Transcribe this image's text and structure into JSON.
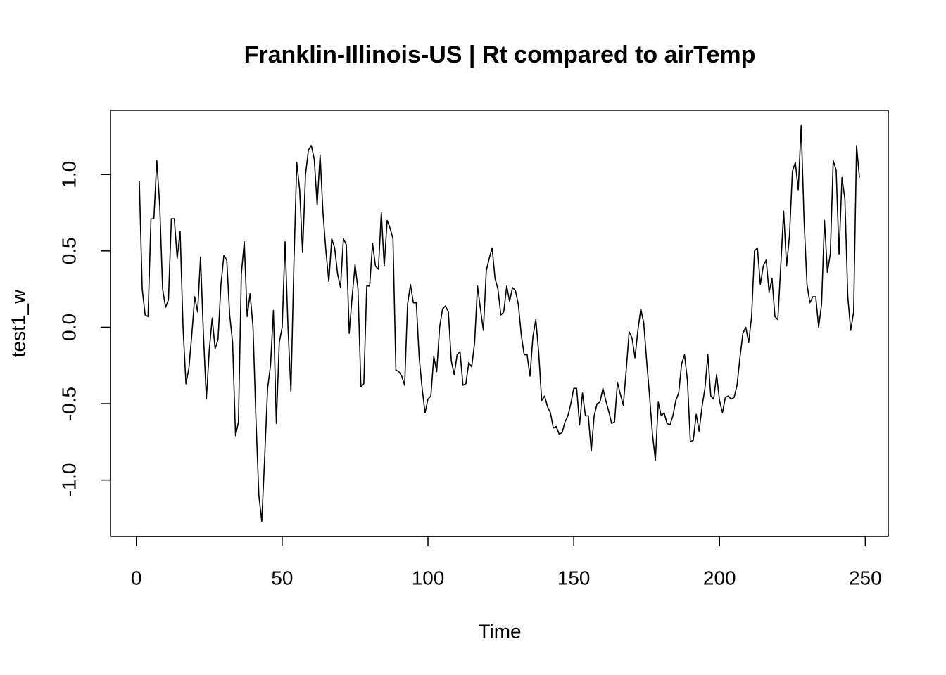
{
  "chart_data": {
    "type": "line",
    "title": "Franklin-Illinois-US | Rt compared to airTemp",
    "x_label": "Time",
    "y_label": "test1_w",
    "x": [
      1,
      2,
      3,
      4,
      5,
      6,
      7,
      8,
      9,
      10,
      11,
      12,
      13,
      14,
      15,
      16,
      17,
      18,
      19,
      20,
      21,
      22,
      23,
      24,
      25,
      26,
      27,
      28,
      29,
      30,
      31,
      32,
      33,
      34,
      35,
      36,
      37,
      38,
      39,
      40,
      41,
      42,
      43,
      44,
      45,
      46,
      47,
      48,
      49,
      50,
      51,
      52,
      53,
      54,
      55,
      56,
      57,
      58,
      59,
      60,
      61,
      62,
      63,
      64,
      65,
      66,
      67,
      68,
      69,
      70,
      71,
      72,
      73,
      74,
      75,
      76,
      77,
      78,
      79,
      80,
      81,
      82,
      83,
      84,
      85,
      86,
      87,
      88,
      89,
      90,
      91,
      92,
      93,
      94,
      95,
      96,
      97,
      98,
      99,
      100,
      101,
      102,
      103,
      104,
      105,
      106,
      107,
      108,
      109,
      110,
      111,
      112,
      113,
      114,
      115,
      116,
      117,
      118,
      119,
      120,
      121,
      122,
      123,
      124,
      125,
      126,
      127,
      128,
      129,
      130,
      131,
      132,
      133,
      134,
      135,
      136,
      137,
      138,
      139,
      140,
      141,
      142,
      143,
      144,
      145,
      146,
      147,
      148,
      149,
      150,
      151,
      152,
      153,
      154,
      155,
      156,
      157,
      158,
      159,
      160,
      161,
      162,
      163,
      164,
      165,
      166,
      167,
      168,
      169,
      170,
      171,
      172,
      173,
      174,
      175,
      176,
      177,
      178,
      179,
      180,
      181,
      182,
      183,
      184,
      185,
      186,
      187,
      188,
      189,
      190,
      191,
      192,
      193,
      194,
      195,
      196,
      197,
      198,
      199,
      200,
      201,
      202,
      203,
      204,
      205,
      206,
      207,
      208,
      209,
      210,
      211,
      212,
      213,
      214,
      215,
      216,
      217,
      218,
      219,
      220,
      221,
      222,
      223,
      224,
      225,
      226,
      227,
      228,
      229,
      230,
      231,
      232,
      233,
      234,
      235,
      236,
      237,
      238,
      239,
      240,
      241,
      242,
      243,
      244,
      245,
      246,
      247,
      248
    ],
    "series": [
      {
        "name": "test1_w",
        "color": "#000000",
        "values": [
          0.96,
          0.25,
          0.08,
          0.07,
          0.71,
          0.71,
          1.09,
          0.8,
          0.25,
          0.13,
          0.18,
          0.71,
          0.71,
          0.45,
          0.63,
          0.0,
          -0.37,
          -0.27,
          -0.05,
          0.2,
          0.1,
          0.46,
          -0.05,
          -0.47,
          -0.15,
          0.06,
          -0.14,
          -0.08,
          0.28,
          0.47,
          0.44,
          0.08,
          -0.1,
          -0.71,
          -0.62,
          0.35,
          0.56,
          0.07,
          0.22,
          0.0,
          -0.6,
          -1.1,
          -1.27,
          -0.85,
          -0.4,
          -0.25,
          0.11,
          -0.63,
          -0.1,
          0.0,
          0.56,
          0.0,
          -0.42,
          0.4,
          1.08,
          0.9,
          0.49,
          1.0,
          1.16,
          1.19,
          1.1,
          0.8,
          1.13,
          0.75,
          0.5,
          0.3,
          0.58,
          0.52,
          0.35,
          0.26,
          0.58,
          0.54,
          -0.04,
          0.2,
          0.41,
          0.25,
          -0.39,
          -0.37,
          0.27,
          0.27,
          0.55,
          0.4,
          0.38,
          0.75,
          0.4,
          0.7,
          0.65,
          0.58,
          -0.28,
          -0.29,
          -0.32,
          -0.38,
          0.15,
          0.28,
          0.16,
          0.16,
          -0.2,
          -0.4,
          -0.56,
          -0.47,
          -0.45,
          -0.19,
          -0.29,
          0.0,
          0.12,
          0.14,
          0.1,
          -0.22,
          -0.31,
          -0.18,
          -0.16,
          -0.38,
          -0.37,
          -0.23,
          -0.26,
          -0.1,
          0.27,
          0.12,
          -0.02,
          0.37,
          0.45,
          0.52,
          0.32,
          0.25,
          0.08,
          0.1,
          0.27,
          0.17,
          0.26,
          0.24,
          0.15,
          -0.05,
          -0.18,
          -0.18,
          -0.32,
          -0.06,
          0.05,
          -0.17,
          -0.48,
          -0.45,
          -0.52,
          -0.56,
          -0.66,
          -0.65,
          -0.7,
          -0.69,
          -0.62,
          -0.58,
          -0.5,
          -0.4,
          -0.4,
          -0.64,
          -0.43,
          -0.58,
          -0.58,
          -0.81,
          -0.58,
          -0.5,
          -0.49,
          -0.4,
          -0.48,
          -0.55,
          -0.63,
          -0.62,
          -0.36,
          -0.44,
          -0.51,
          -0.28,
          -0.03,
          -0.07,
          -0.2,
          -0.02,
          0.12,
          0.03,
          -0.22,
          -0.45,
          -0.7,
          -0.87,
          -0.49,
          -0.58,
          -0.56,
          -0.63,
          -0.64,
          -0.58,
          -0.48,
          -0.43,
          -0.24,
          -0.18,
          -0.35,
          -0.75,
          -0.74,
          -0.57,
          -0.68,
          -0.52,
          -0.4,
          -0.18,
          -0.45,
          -0.47,
          -0.31,
          -0.48,
          -0.56,
          -0.46,
          -0.45,
          -0.47,
          -0.46,
          -0.38,
          -0.2,
          -0.04,
          0.0,
          -0.1,
          0.07,
          0.5,
          0.52,
          0.28,
          0.4,
          0.44,
          0.23,
          0.32,
          0.07,
          0.05,
          0.4,
          0.76,
          0.4,
          0.6,
          1.02,
          1.08,
          0.9,
          1.32,
          0.7,
          0.28,
          0.16,
          0.2,
          0.2,
          0.0,
          0.15,
          0.7,
          0.36,
          0.48,
          1.09,
          1.03,
          0.48,
          0.98,
          0.84,
          0.2,
          -0.02,
          0.1,
          1.19,
          0.98
        ]
      }
    ],
    "xlim": [
      -8.88,
      257.88
    ],
    "ylim": [
      -1.37,
      1.42
    ],
    "xticks": [
      0,
      50,
      100,
      150,
      200,
      250
    ],
    "yticks": [
      {
        "value": -1,
        "label": "-1.0"
      },
      -0.5,
      {
        "value": 0,
        "label": "0.0"
      },
      0.5,
      {
        "value": 1,
        "label": "1.0"
      }
    ],
    "grid": false
  }
}
